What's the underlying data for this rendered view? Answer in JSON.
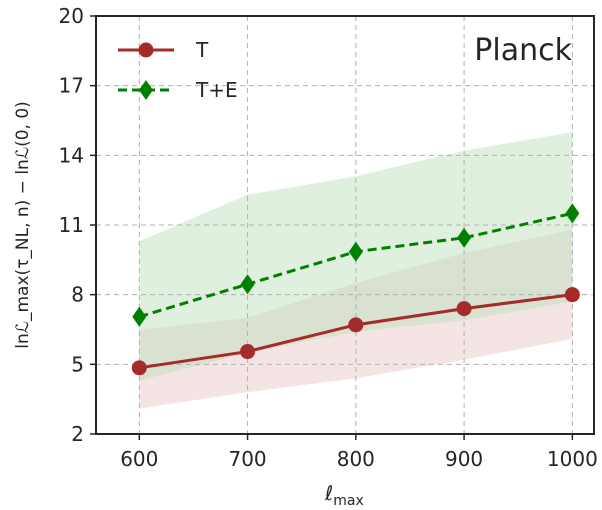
{
  "chart_data": {
    "type": "line",
    "title": "",
    "annotation": "Planck",
    "xlabel_main": "ℓ",
    "xlabel_sub": "max",
    "ylabel": "lnℒ_max(τ_NL, n) − lnℒ(0, 0)",
    "x": [
      600,
      700,
      800,
      900,
      1000
    ],
    "xticks": [
      "600",
      "700",
      "800",
      "900",
      "1000"
    ],
    "yticks": [
      "2",
      "5",
      "8",
      "11",
      "14",
      "17",
      "20"
    ],
    "xlim": [
      560,
      1020
    ],
    "ylim": [
      2,
      20
    ],
    "grid": true,
    "legend_position": "top-left",
    "series": [
      {
        "name": "T",
        "color": "#a52a2a",
        "linestyle": "solid",
        "marker": "circle",
        "values": [
          4.85,
          5.55,
          6.7,
          7.4,
          8.0
        ],
        "band_lower": [
          3.1,
          3.8,
          4.4,
          5.2,
          6.1
        ],
        "band_upper": [
          6.5,
          7.0,
          8.5,
          9.8,
          10.8
        ],
        "band_color": "#e8c4c4"
      },
      {
        "name": "T+E",
        "color": "#008000",
        "linestyle": "dashed",
        "marker": "diamond",
        "values": [
          7.05,
          8.45,
          9.85,
          10.45,
          11.5
        ],
        "band_lower": [
          4.3,
          5.5,
          6.4,
          6.9,
          7.7
        ],
        "band_upper": [
          10.3,
          12.3,
          13.1,
          14.2,
          15.0
        ],
        "band_color": "#b8deb8"
      }
    ]
  }
}
